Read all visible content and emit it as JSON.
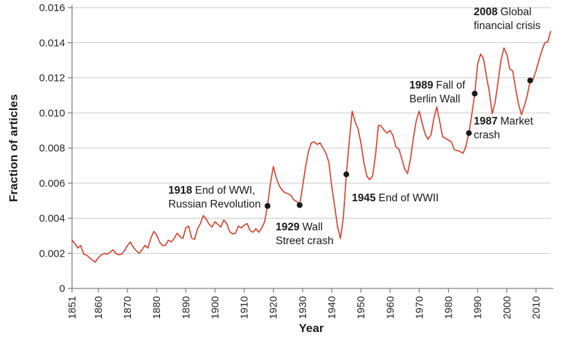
{
  "figure": {
    "y_axis_title": "Fraction of articles",
    "x_axis_title": "Year"
  },
  "chart_data": {
    "type": "line",
    "title": "",
    "xlabel": "Year",
    "ylabel": "Fraction of articles",
    "x_range": [
      1851,
      2015
    ],
    "ylim": [
      0,
      0.016
    ],
    "grid": true,
    "legend": "none",
    "line_color": "#d9412f",
    "grid_color": "#c9c9c9",
    "axis_color": "#7f7f7f",
    "text_color": "#262626",
    "marker_color": "#1a1a1a",
    "y_ticks": [
      0,
      0.002,
      0.004,
      0.006,
      0.008,
      0.01,
      0.012,
      0.014,
      0.016
    ],
    "x_tick_years": [
      1851,
      1860,
      1870,
      1880,
      1890,
      1900,
      1910,
      1920,
      1930,
      1940,
      1950,
      1960,
      1970,
      1980,
      1990,
      2000,
      2010
    ],
    "series": [
      {
        "name": "Fraction of articles",
        "start_year": 1851,
        "values": [
          0.00275,
          0.00255,
          0.0023,
          0.00245,
          0.00195,
          0.0019,
          0.00175,
          0.0016,
          0.0015,
          0.00175,
          0.0019,
          0.002,
          0.00195,
          0.00205,
          0.0022,
          0.002,
          0.00192,
          0.00195,
          0.00215,
          0.00245,
          0.00265,
          0.00235,
          0.00215,
          0.002,
          0.0022,
          0.00245,
          0.0023,
          0.00285,
          0.00325,
          0.00305,
          0.00265,
          0.00245,
          0.00245,
          0.00275,
          0.00265,
          0.00285,
          0.00315,
          0.00295,
          0.00285,
          0.00345,
          0.00355,
          0.00285,
          0.0028,
          0.0034,
          0.0037,
          0.00415,
          0.00395,
          0.00365,
          0.0035,
          0.0038,
          0.00365,
          0.0035,
          0.0039,
          0.0037,
          0.00325,
          0.0031,
          0.00315,
          0.00355,
          0.00345,
          0.0036,
          0.0037,
          0.0033,
          0.0032,
          0.0034,
          0.0032,
          0.00345,
          0.0038,
          0.0047,
          0.006,
          0.00695,
          0.0063,
          0.00585,
          0.0056,
          0.00545,
          0.0054,
          0.0053,
          0.00505,
          0.00495,
          0.00475,
          0.0058,
          0.0069,
          0.0078,
          0.0083,
          0.00835,
          0.0082,
          0.0083,
          0.008,
          0.0077,
          0.0072,
          0.0058,
          0.0047,
          0.0035,
          0.00285,
          0.00405,
          0.0065,
          0.0084,
          0.0101,
          0.0095,
          0.0091,
          0.0083,
          0.0072,
          0.0064,
          0.0062,
          0.0064,
          0.0076,
          0.0093,
          0.00925,
          0.009,
          0.00885,
          0.009,
          0.0087,
          0.00805,
          0.00795,
          0.0074,
          0.0068,
          0.00655,
          0.0074,
          0.0086,
          0.0096,
          0.0101,
          0.0094,
          0.0088,
          0.0085,
          0.00875,
          0.0097,
          0.01035,
          0.0095,
          0.00865,
          0.00855,
          0.00845,
          0.00835,
          0.0079,
          0.00785,
          0.0078,
          0.0077,
          0.0081,
          0.00885,
          0.0099,
          0.0111,
          0.0128,
          0.01335,
          0.0131,
          0.0121,
          0.0112,
          0.00995,
          0.0106,
          0.0118,
          0.013,
          0.0137,
          0.01335,
          0.0125,
          0.0124,
          0.0114,
          0.0105,
          0.0099,
          0.0104,
          0.011,
          0.01185,
          0.0119,
          0.0124,
          0.013,
          0.01355,
          0.014,
          0.01405,
          0.01465
        ]
      }
    ],
    "marker_years": [
      1918,
      1929,
      1945,
      1987,
      1989,
      2008
    ],
    "annotations": [
      {
        "year": "1918",
        "line1": "End of WWI,",
        "line2": "Russian Revolution"
      },
      {
        "year": "1929",
        "line1": "Wall",
        "line2": "Street crash"
      },
      {
        "year": "1945",
        "line1": "End of WWII",
        "line2": ""
      },
      {
        "year": "1989",
        "line1": "Fall of",
        "line2": "Berlin Wall"
      },
      {
        "year": "1987",
        "line1": "Market",
        "line2": "crash"
      },
      {
        "year": "2008",
        "line1": "Global",
        "line2": "financial crisis"
      }
    ]
  }
}
